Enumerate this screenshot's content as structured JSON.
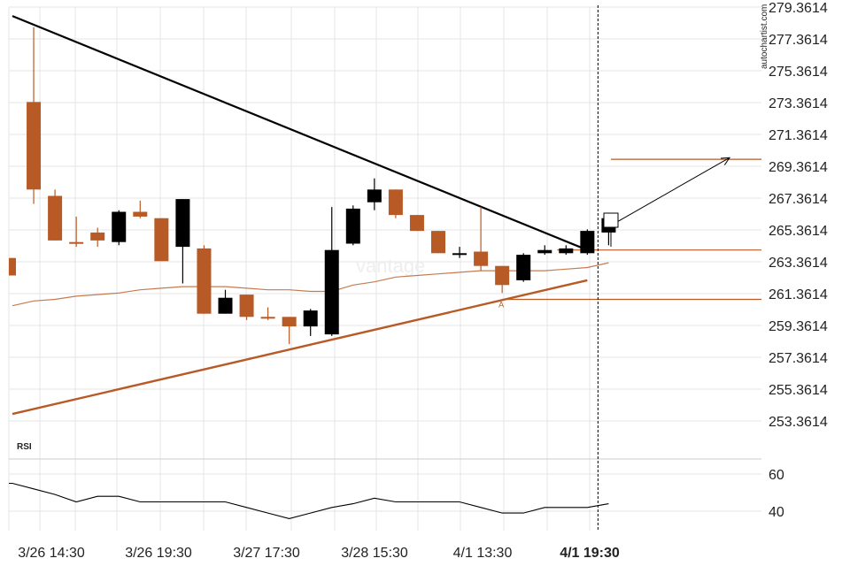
{
  "chart_data": [
    {
      "type": "candlestick",
      "ylim": [
        251.3614,
        279.3614
      ],
      "y_ticks": [
        "279.3614",
        "277.3614",
        "275.3614",
        "273.3614",
        "271.3614",
        "269.3614",
        "267.3614",
        "265.3614",
        "263.3614",
        "261.3614",
        "259.3614",
        "257.3614",
        "255.3614",
        "253.3614"
      ],
      "x_tick_labels": [
        "3/26 14:30",
        "3/26 19:30",
        "3/27 17:30",
        "3/28 15:30",
        "4/1 13:30",
        "4/1 19:30"
      ],
      "candles": [
        {
          "o": 263.6,
          "h": 263.6,
          "l": 262.5,
          "c": 262.5
        },
        {
          "o": 273.4,
          "h": 278.1,
          "l": 267.0,
          "c": 267.9
        },
        {
          "o": 267.5,
          "h": 267.9,
          "l": 264.7,
          "c": 264.7
        },
        {
          "o": 264.6,
          "h": 266.2,
          "l": 264.3,
          "c": 264.5
        },
        {
          "o": 265.2,
          "h": 265.5,
          "l": 264.3,
          "c": 264.7
        },
        {
          "o": 264.6,
          "h": 266.6,
          "l": 264.4,
          "c": 266.5
        },
        {
          "o": 266.5,
          "h": 267.2,
          "l": 266.1,
          "c": 266.2
        },
        {
          "o": 266.1,
          "h": 266.1,
          "l": 263.4,
          "c": 263.4
        },
        {
          "o": 264.3,
          "h": 267.3,
          "l": 262.0,
          "c": 267.3
        },
        {
          "o": 264.2,
          "h": 264.4,
          "l": 260.1,
          "c": 260.1
        },
        {
          "o": 260.1,
          "h": 261.6,
          "l": 260.1,
          "c": 261.1
        },
        {
          "o": 261.3,
          "h": 261.3,
          "l": 259.7,
          "c": 259.9
        },
        {
          "o": 259.9,
          "h": 260.5,
          "l": 259.7,
          "c": 259.8
        },
        {
          "o": 259.9,
          "h": 259.9,
          "l": 258.2,
          "c": 259.3
        },
        {
          "o": 259.3,
          "h": 260.4,
          "l": 258.7,
          "c": 260.3
        },
        {
          "o": 258.8,
          "h": 266.8,
          "l": 258.7,
          "c": 264.1
        },
        {
          "o": 264.5,
          "h": 266.9,
          "l": 264.4,
          "c": 266.7
        },
        {
          "o": 267.1,
          "h": 268.6,
          "l": 266.6,
          "c": 267.9
        },
        {
          "o": 267.9,
          "h": 267.9,
          "l": 266.1,
          "c": 266.3
        },
        {
          "o": 266.3,
          "h": 266.3,
          "l": 265.5,
          "c": 265.3
        },
        {
          "o": 265.3,
          "h": 265.3,
          "l": 263.9,
          "c": 263.9
        },
        {
          "o": 263.8,
          "h": 264.3,
          "l": 263.6,
          "c": 263.9
        },
        {
          "o": 264.0,
          "h": 266.8,
          "l": 262.8,
          "c": 263.1
        },
        {
          "o": 263.1,
          "h": 263.1,
          "l": 261.4,
          "c": 261.9
        },
        {
          "o": 262.2,
          "h": 263.9,
          "l": 262.1,
          "c": 263.8
        },
        {
          "o": 263.9,
          "h": 264.4,
          "l": 263.8,
          "c": 264.1
        },
        {
          "o": 263.9,
          "h": 264.4,
          "l": 263.8,
          "c": 264.2
        },
        {
          "o": 263.9,
          "h": 265.4,
          "l": 263.8,
          "c": 265.3
        },
        {
          "o": 265.2,
          "h": 266.2,
          "l": 264.4,
          "c": 266.1
        }
      ],
      "moving_average": [
        260.6,
        260.9,
        261.0,
        261.2,
        261.3,
        261.4,
        261.6,
        261.7,
        261.8,
        261.8,
        261.8,
        261.7,
        261.6,
        261.6,
        261.5,
        261.5,
        261.9,
        262.1,
        262.4,
        262.5,
        262.6,
        262.7,
        262.8,
        262.8,
        262.8,
        262.8,
        262.9,
        263.0,
        263.3
      ],
      "resistance_line": {
        "from": [
          0,
          278.8
        ],
        "to": [
          27,
          264.1
        ]
      },
      "support_line": {
        "from": [
          0,
          253.8
        ],
        "to": [
          27,
          262.2
        ]
      },
      "horizontal_levels": [
        269.8,
        264.1,
        261.0
      ],
      "projection": {
        "from": [
          28,
          265.9
        ],
        "to": [
          34,
          269.9
        ]
      },
      "annotation_label": "A",
      "forecast_box": true,
      "vertical_marker_after_candle": 27
    },
    {
      "type": "line",
      "name_label": "RSI",
      "ylim": [
        33,
        80
      ],
      "y_ticks": [
        "60",
        "40"
      ],
      "values": [
        55,
        52,
        49,
        45,
        48,
        48,
        45,
        45,
        45,
        45,
        45,
        42,
        39,
        36,
        39,
        42,
        44,
        47,
        45,
        45,
        45,
        45,
        42,
        39,
        39,
        42,
        42,
        42,
        44
      ]
    }
  ],
  "watermark": "vantage",
  "credit": "autochartist.com",
  "colors": {
    "bearish": "#b85a26",
    "bullish": "#000000",
    "support": "#b85a26",
    "ma": "#b85a26",
    "grid": "#e6e6e6",
    "text": "#222222"
  }
}
